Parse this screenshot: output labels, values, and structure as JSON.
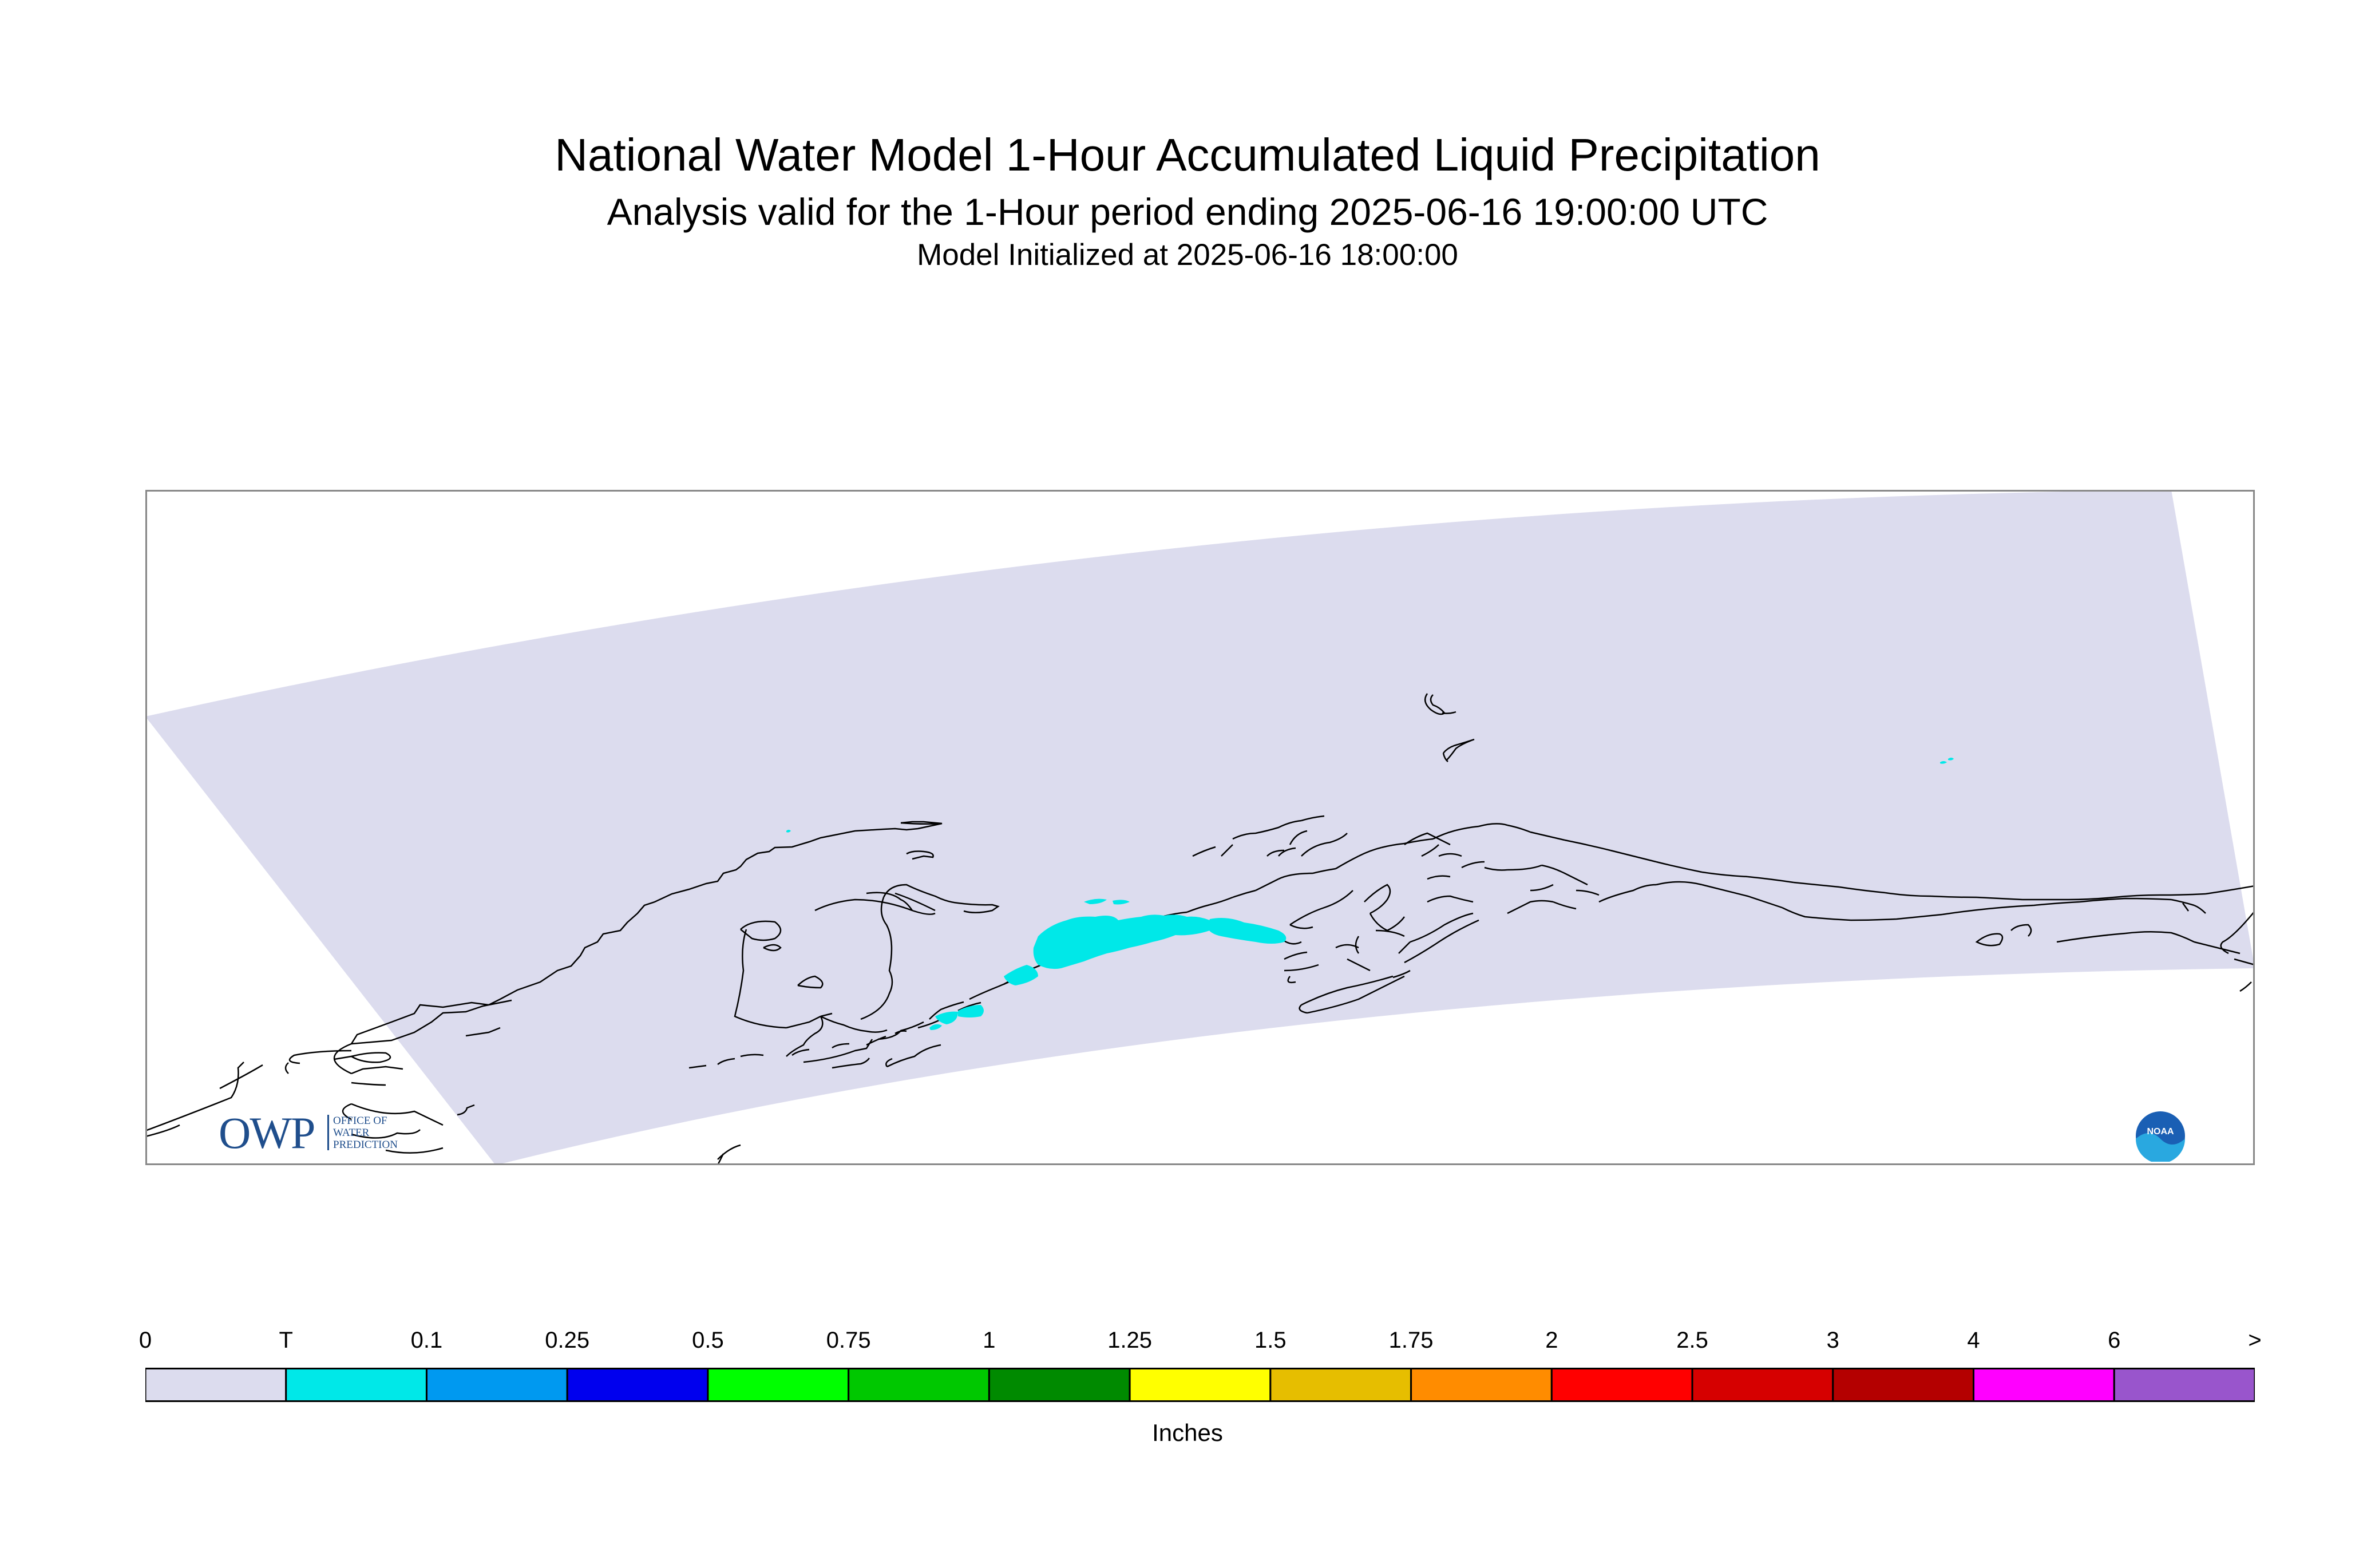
{
  "title": "National Water Model 1-Hour Accumulated Liquid Precipitation",
  "subtitle": "Analysis valid for the 1-Hour period ending 2025-06-16 19:00:00 UTC",
  "init_line": "Model Initialized at 2025-06-16 18:00:00",
  "logos": {
    "owp_mark": "OWP",
    "owp_text": [
      "OFFICE OF",
      "WATER",
      "PREDICTION"
    ],
    "noaa_text": "NOAA"
  },
  "colors": {
    "domain_fill": "#dcdcee",
    "coastline": "#000000",
    "precip_trace": "#00e8e8"
  },
  "legend": {
    "units": "Inches",
    "tick_labels": [
      "0",
      "T",
      "0.1",
      "0.25",
      "0.5",
      "0.75",
      "1",
      "1.25",
      "1.5",
      "1.75",
      "2",
      "2.5",
      "3",
      "4",
      "6",
      ">"
    ],
    "bin_colors": [
      "#dcdcee",
      "#00e8e8",
      "#0099f0",
      "#0000ee",
      "#00ff00",
      "#00c800",
      "#008a00",
      "#ffff00",
      "#e6be00",
      "#ff8c00",
      "#ff0000",
      "#d60000",
      "#b40000",
      "#ff00ff",
      "#9955cc"
    ]
  }
}
